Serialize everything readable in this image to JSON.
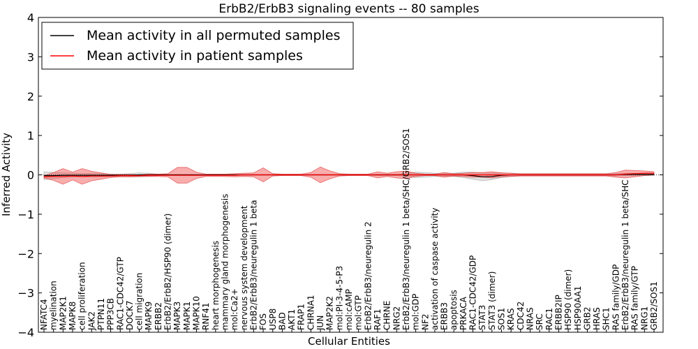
{
  "chart_data": {
    "type": "line",
    "title": "ErbB2/ErbB3 signaling events -- 80 samples",
    "xlabel": "Cellular Entities",
    "ylabel": "Inferred Activity",
    "ylim": [
      -4,
      4
    ],
    "yticks": [
      4,
      3,
      2,
      1,
      0,
      -1,
      -2,
      -3,
      -4
    ],
    "ytick_labels": [
      "4",
      "3",
      "2",
      "1",
      "0",
      "−1",
      "−2",
      "−3",
      "−4"
    ],
    "grid": false,
    "legend_position": "top-left",
    "legend": [
      {
        "label": "Mean activity in all permuted samples",
        "color": "#000000"
      },
      {
        "label": "Mean activity in patient samples",
        "color": "#ff0000"
      }
    ],
    "categories": [
      "NFATC4",
      "myelination",
      "MAP2K1",
      "MAPK8",
      "cell proliferation",
      "JAK2",
      "PTPN11",
      "PPP3CB",
      "RAC1-CDC42/GTP",
      "DOCK7",
      "cell migration",
      "MAPK9",
      "ERBB2",
      "ErbB2/ErbB2/HSP90 (dimer)",
      "MAPK3",
      "MAPK1",
      "MAPK10",
      "RNF41",
      "heart morphogenesis",
      "mammary gland morphogenesis",
      "mol:Ca2+",
      "nervous system development",
      "ErbB2/ErbB3/neuregulin 1 beta",
      "FOS",
      "USP8",
      "BAD",
      "AKT1",
      "FRAP1",
      "CHRNA1",
      "JUN",
      "MAP2K2",
      "mol:PI-3-4-5-P3",
      "mol:cAMP",
      "mol:GTP",
      "ErbB2/ErbB3/neuregulin 2",
      "RAF1",
      "CHRNE",
      "NRG2",
      "ErbB2/ErbB3/neuregulin 1 beta/SHC/GRB2/SOS1",
      "mol:GDP",
      "NF2",
      "activation of caspase activity",
      "ERBB3",
      "apoptosis",
      "PRKACA",
      "RAC1-CDC42/GDP",
      "STAT3",
      "STAT3 (dimer)",
      "SOS1",
      "KRAS",
      "CDC42",
      "NRAS",
      "SRC",
      "RAC1",
      "ERBB2IP",
      "HSP90 (dimer)",
      "HSP90AA1",
      "GRB2",
      "HRAS",
      "SHC1",
      "RAS family/GDP",
      "ErbB2/ErbB3/neuregulin 1 beta/SHC",
      "RAS family/GTP",
      "NRG1",
      "GRB2/SOS1"
    ],
    "series": [
      {
        "name": "Mean activity in all permuted samples",
        "color": "#000000",
        "values": [
          -0.02,
          -0.02,
          -0.01,
          -0.01,
          -0.01,
          -0.01,
          -0.01,
          -0.01,
          -0.01,
          -0.01,
          0.0,
          0.0,
          0.0,
          0.0,
          0.0,
          0.0,
          0.0,
          0.0,
          0.0,
          0.0,
          0.0,
          0.0,
          0.0,
          0.0,
          0.0,
          0.0,
          0.0,
          0.0,
          0.0,
          0.0,
          0.0,
          0.0,
          0.0,
          0.0,
          0.0,
          0.0,
          0.0,
          0.0,
          0.0,
          0.0,
          0.0,
          0.0,
          0.0,
          0.0,
          0.0,
          -0.02,
          -0.05,
          -0.04,
          -0.01,
          0.0,
          0.0,
          0.0,
          0.0,
          0.0,
          0.0,
          0.0,
          0.0,
          0.0,
          0.0,
          0.0,
          0.0,
          0.01,
          0.01,
          0.01,
          0.01
        ],
        "band": [
          0.1,
          0.08,
          0.06,
          0.05,
          0.04,
          0.05,
          0.04,
          0.03,
          0.03,
          0.04,
          0.05,
          0.04,
          0.02,
          0.01,
          0.01,
          0.01,
          0.01,
          0.01,
          0.01,
          0.01,
          0.01,
          0.01,
          0.01,
          0.01,
          0.01,
          0.01,
          0.01,
          0.01,
          0.01,
          0.01,
          0.01,
          0.01,
          0.01,
          0.01,
          0.01,
          0.02,
          0.02,
          0.02,
          0.03,
          0.07,
          0.06,
          0.04,
          0.03,
          0.04,
          0.07,
          0.09,
          0.1,
          0.08,
          0.06,
          0.04,
          0.02,
          0.02,
          0.02,
          0.02,
          0.02,
          0.02,
          0.02,
          0.02,
          0.02,
          0.02,
          0.03,
          0.03,
          0.03,
          0.03,
          0.03
        ]
      },
      {
        "name": "Mean activity in patient samples",
        "color": "#ff0000",
        "values": [
          -0.05,
          -0.04,
          -0.04,
          -0.03,
          -0.04,
          -0.03,
          -0.03,
          -0.03,
          -0.02,
          -0.02,
          -0.02,
          -0.01,
          -0.01,
          -0.01,
          -0.01,
          -0.01,
          -0.01,
          -0.01,
          -0.01,
          -0.01,
          -0.01,
          0.0,
          0.0,
          0.0,
          0.0,
          0.0,
          0.0,
          0.0,
          0.0,
          0.0,
          0.0,
          0.0,
          0.0,
          0.0,
          0.0,
          0.0,
          0.0,
          0.0,
          0.0,
          0.0,
          0.0,
          0.0,
          0.0,
          0.0,
          0.0,
          0.0,
          0.0,
          0.0,
          0.0,
          0.0,
          0.0,
          0.0,
          0.0,
          0.0,
          0.0,
          0.0,
          0.0,
          0.0,
          0.0,
          0.0,
          0.0,
          0.02,
          0.03,
          0.04,
          0.04
        ],
        "band": [
          0.03,
          0.1,
          0.2,
          0.1,
          0.2,
          0.12,
          0.08,
          0.04,
          0.03,
          0.03,
          0.02,
          0.03,
          0.03,
          0.04,
          0.2,
          0.2,
          0.08,
          0.03,
          0.03,
          0.03,
          0.04,
          0.04,
          0.05,
          0.18,
          0.03,
          0.02,
          0.02,
          0.02,
          0.06,
          0.2,
          0.1,
          0.03,
          0.02,
          0.02,
          0.02,
          0.08,
          0.04,
          0.08,
          0.1,
          0.04,
          0.02,
          0.02,
          0.06,
          0.03,
          0.04,
          0.06,
          0.06,
          0.08,
          0.05,
          0.04,
          0.03,
          0.03,
          0.03,
          0.03,
          0.03,
          0.03,
          0.03,
          0.03,
          0.03,
          0.03,
          0.06,
          0.1,
          0.08,
          0.06,
          0.04
        ]
      }
    ]
  }
}
